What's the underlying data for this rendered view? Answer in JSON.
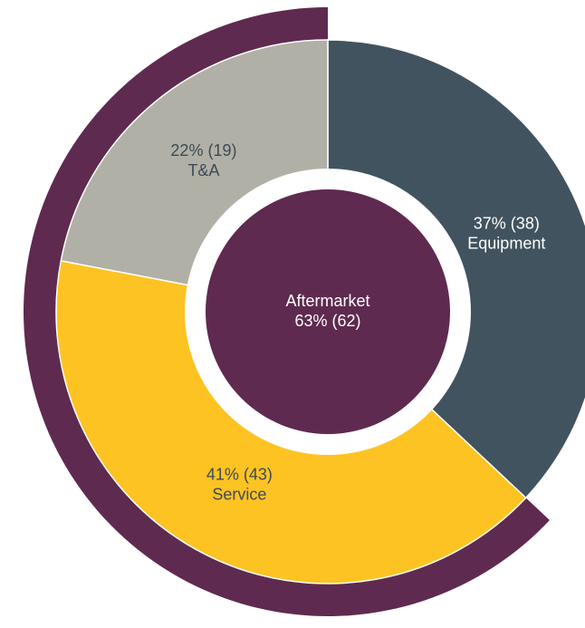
{
  "chart_data": {
    "type": "pie",
    "categories": [
      "Equipment",
      "Service",
      "T&A"
    ],
    "values": [
      37,
      41,
      22
    ],
    "value_labels": [
      "37% (38)",
      "41% (43)",
      "22% (19)"
    ],
    "colors": [
      "#41535f",
      "#fdc323",
      "#b1b0a6"
    ],
    "aftermarket": {
      "label": "Aftermarket",
      "value": 63,
      "value_label": "63% (62)",
      "color": "#5f2a4f"
    }
  }
}
